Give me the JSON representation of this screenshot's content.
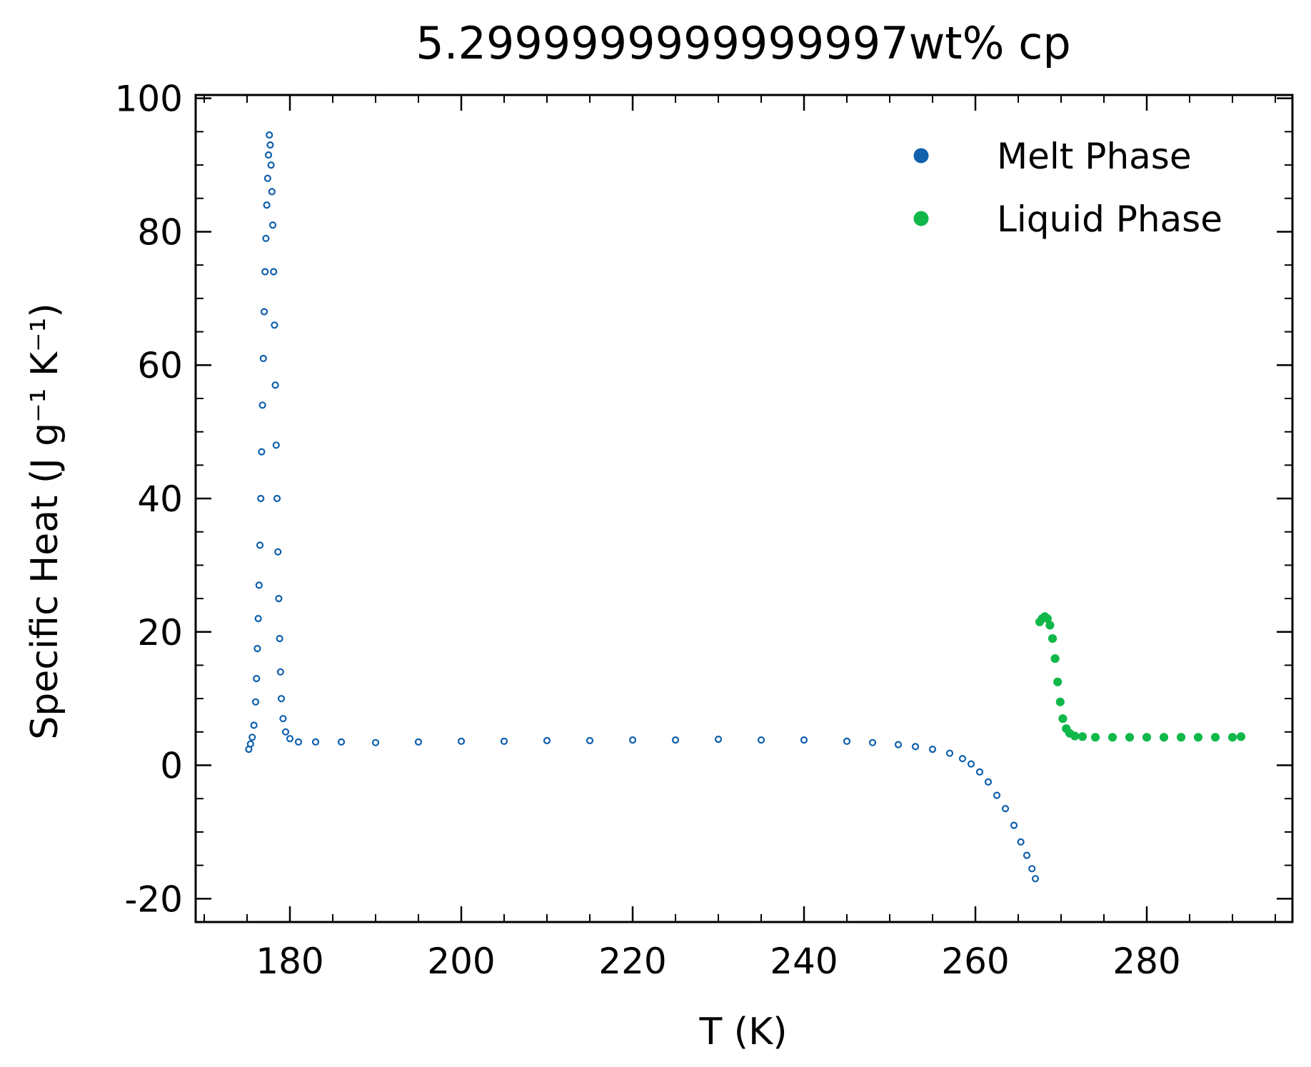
{
  "chart_data": {
    "type": "scatter",
    "title": "5.2999999999999997wt% cp",
    "xlabel": "T (K)",
    "ylabel": "Specific Heat (J g⁻¹ K⁻¹)",
    "xlim": [
      169,
      297
    ],
    "ylim": [
      -23.5,
      100.5
    ],
    "x_ticks": [
      180,
      200,
      220,
      240,
      260,
      280
    ],
    "y_ticks": [
      -20,
      0,
      20,
      40,
      60,
      80,
      100
    ],
    "x_tick_labels": [
      "180",
      "200",
      "220",
      "240",
      "260",
      "280"
    ],
    "y_tick_labels": [
      "-20",
      "0",
      "20",
      "40",
      "60",
      "80",
      "100"
    ],
    "grid": false,
    "legend_position": "top-right",
    "series": [
      {
        "name": "Melt Phase",
        "color": "#1060ac",
        "marker": "open-circle",
        "points": [
          [
            175.2,
            2.4
          ],
          [
            175.4,
            3.2
          ],
          [
            175.6,
            4.2
          ],
          [
            175.8,
            6.0
          ],
          [
            176.0,
            9.5
          ],
          [
            176.1,
            13.0
          ],
          [
            176.2,
            17.5
          ],
          [
            176.3,
            22.0
          ],
          [
            176.4,
            27.0
          ],
          [
            176.5,
            33.0
          ],
          [
            176.6,
            40.0
          ],
          [
            176.7,
            47.0
          ],
          [
            176.8,
            54.0
          ],
          [
            176.9,
            61.0
          ],
          [
            177.0,
            68.0
          ],
          [
            177.1,
            74.0
          ],
          [
            177.2,
            79.0
          ],
          [
            177.3,
            84.0
          ],
          [
            177.4,
            88.0
          ],
          [
            177.5,
            91.5
          ],
          [
            177.6,
            94.5
          ],
          [
            177.7,
            93.0
          ],
          [
            177.8,
            90.0
          ],
          [
            177.9,
            86.0
          ],
          [
            178.0,
            81.0
          ],
          [
            178.1,
            74.0
          ],
          [
            178.2,
            66.0
          ],
          [
            178.3,
            57.0
          ],
          [
            178.4,
            48.0
          ],
          [
            178.5,
            40.0
          ],
          [
            178.6,
            32.0
          ],
          [
            178.7,
            25.0
          ],
          [
            178.8,
            19.0
          ],
          [
            178.9,
            14.0
          ],
          [
            179.0,
            10.0
          ],
          [
            179.2,
            7.0
          ],
          [
            179.5,
            5.0
          ],
          [
            180.0,
            4.0
          ],
          [
            181.0,
            3.5
          ],
          [
            183.0,
            3.5
          ],
          [
            186.0,
            3.5
          ],
          [
            190.0,
            3.4
          ],
          [
            195.0,
            3.5
          ],
          [
            200.0,
            3.6
          ],
          [
            205.0,
            3.6
          ],
          [
            210.0,
            3.7
          ],
          [
            215.0,
            3.7
          ],
          [
            220.0,
            3.8
          ],
          [
            225.0,
            3.8
          ],
          [
            230.0,
            3.9
          ],
          [
            235.0,
            3.8
          ],
          [
            240.0,
            3.8
          ],
          [
            245.0,
            3.6
          ],
          [
            248.0,
            3.4
          ],
          [
            251.0,
            3.1
          ],
          [
            253.0,
            2.8
          ],
          [
            255.0,
            2.4
          ],
          [
            257.0,
            1.8
          ],
          [
            258.5,
            1.0
          ],
          [
            259.5,
            0.2
          ],
          [
            260.5,
            -1.0
          ],
          [
            261.5,
            -2.5
          ],
          [
            262.5,
            -4.5
          ],
          [
            263.5,
            -6.5
          ],
          [
            264.5,
            -9.0
          ],
          [
            265.3,
            -11.5
          ],
          [
            266.0,
            -13.5
          ],
          [
            266.6,
            -15.5
          ],
          [
            267.0,
            -17.0
          ]
        ]
      },
      {
        "name": "Liquid Phase",
        "color": "#10b84a",
        "marker": "filled-circle",
        "points": [
          [
            267.5,
            21.5
          ],
          [
            267.8,
            22.0
          ],
          [
            268.1,
            22.3
          ],
          [
            268.4,
            22.0
          ],
          [
            268.7,
            21.0
          ],
          [
            269.0,
            19.0
          ],
          [
            269.3,
            16.0
          ],
          [
            269.6,
            12.5
          ],
          [
            269.9,
            9.5
          ],
          [
            270.2,
            7.0
          ],
          [
            270.6,
            5.5
          ],
          [
            271.0,
            4.8
          ],
          [
            271.6,
            4.4
          ],
          [
            272.5,
            4.3
          ],
          [
            274.0,
            4.2
          ],
          [
            276.0,
            4.2
          ],
          [
            278.0,
            4.2
          ],
          [
            280.0,
            4.2
          ],
          [
            282.0,
            4.2
          ],
          [
            284.0,
            4.2
          ],
          [
            286.0,
            4.2
          ],
          [
            288.0,
            4.2
          ],
          [
            290.0,
            4.2
          ],
          [
            291.0,
            4.3
          ]
        ]
      }
    ]
  }
}
